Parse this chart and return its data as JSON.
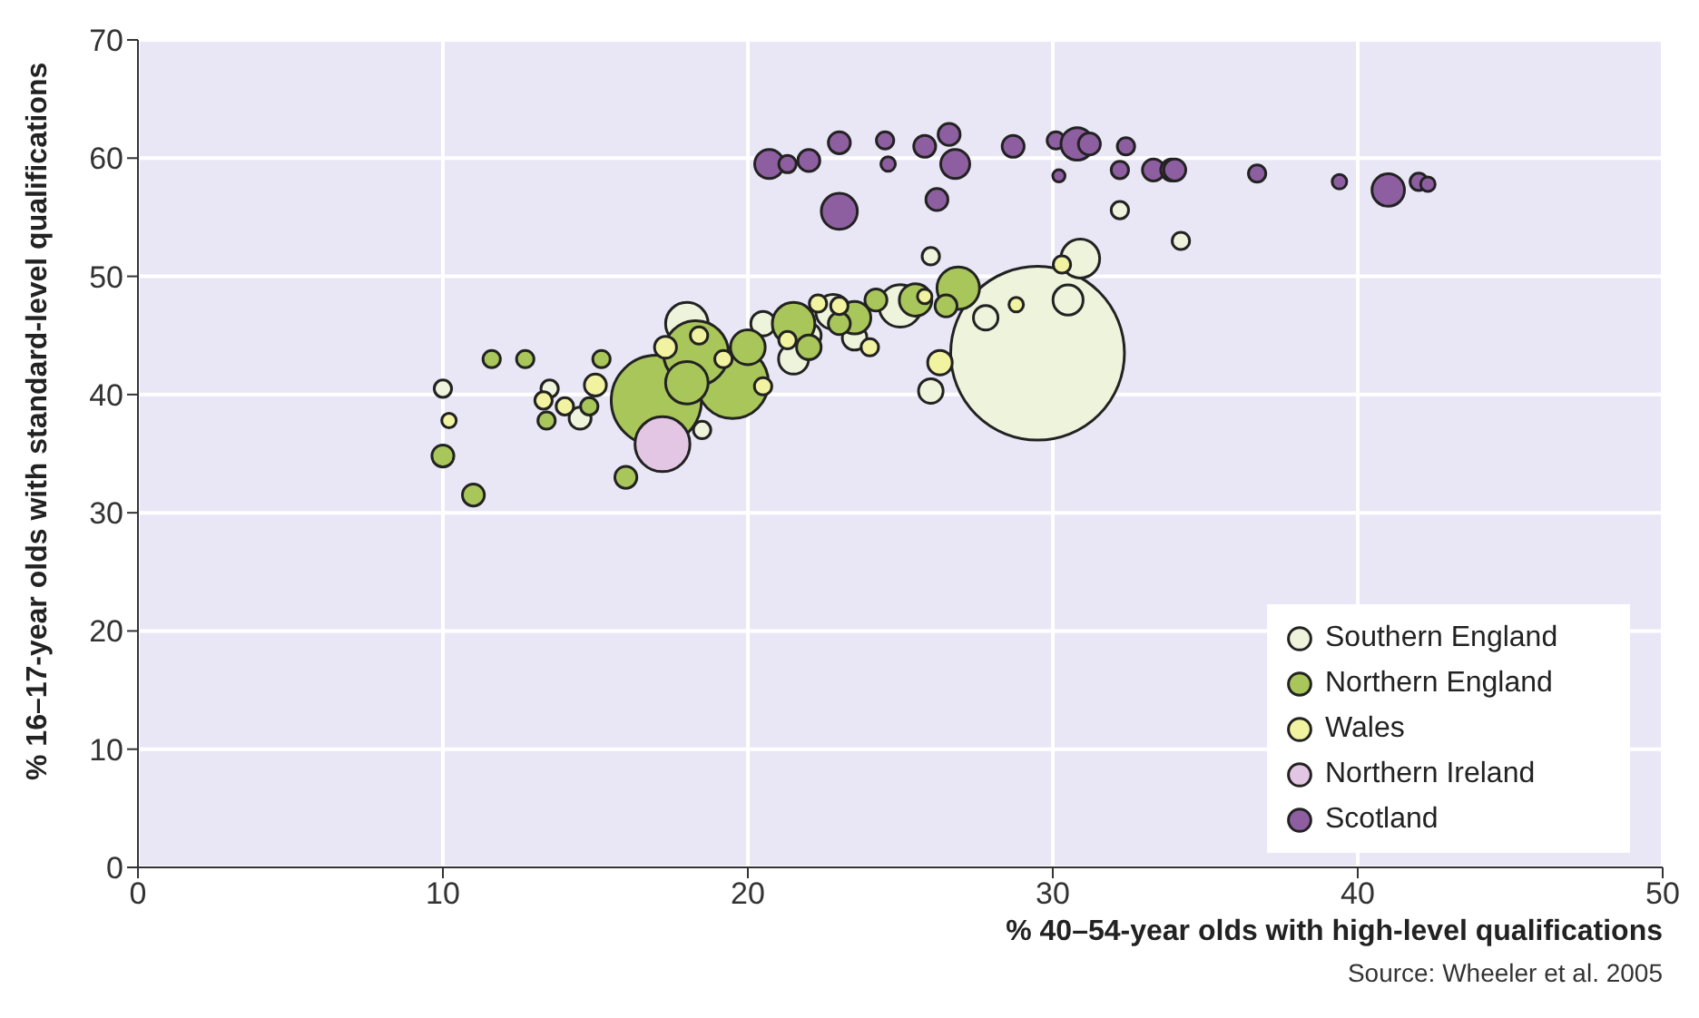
{
  "chart_data": {
    "type": "bubble",
    "xlabel": "% 40–54-year olds with high-level qualifications",
    "ylabel": "% 16–17-year olds with standard-level qualifications",
    "xlim": [
      0,
      50
    ],
    "ylim": [
      0,
      70
    ],
    "xticks": [
      0,
      10,
      20,
      30,
      40,
      50
    ],
    "yticks": [
      0,
      10,
      20,
      30,
      40,
      50,
      60,
      70
    ],
    "grid": true,
    "legend": "bottom right",
    "marker": "circle",
    "annotations": [
      "Source: Wheeler et al. 2005"
    ],
    "series": [
      {
        "name": "Southern England",
        "color": "#eef3dc",
        "x": [
          29.5,
          30.9,
          30.5,
          26,
          27.8,
          18,
          25,
          26,
          34.2,
          32.2,
          21.5,
          22.8,
          23.5,
          14.5,
          10,
          13.5,
          18.5,
          20.5,
          22
        ],
        "values": [
          43.5,
          51.5,
          48,
          40.3,
          46.5,
          46,
          47.5,
          51.7,
          53,
          55.6,
          43,
          47,
          44.8,
          38,
          40.5,
          40.5,
          37,
          46,
          45
        ],
        "sizes": [
          1,
          0.05,
          0.03,
          0.02,
          0.02,
          0.06,
          0.06,
          0.01,
          0.01,
          0.01,
          0.03,
          0.04,
          0.02,
          0.016,
          0.01,
          0.01,
          0.01,
          0.02,
          0.02
        ]
      },
      {
        "name": "Northern England",
        "color": "#a8c65a",
        "x": [
          17,
          19.5,
          18.3,
          18,
          20,
          21.5,
          23.5,
          25.5,
          26.9,
          16,
          11,
          10,
          11.6,
          12.7,
          13.4,
          14.8,
          15.2,
          22,
          23,
          24.2,
          26.5
        ],
        "values": [
          39.5,
          41,
          43.5,
          41,
          44,
          46,
          46.5,
          48,
          49,
          33,
          31.5,
          34.8,
          43,
          43,
          37.8,
          39,
          43,
          44,
          46,
          48,
          47.5
        ],
        "sizes": [
          0.27,
          0.17,
          0.14,
          0.06,
          0.04,
          0.06,
          0.035,
          0.035,
          0.06,
          0.016,
          0.016,
          0.016,
          0.01,
          0.01,
          0.01,
          0.01,
          0.01,
          0.02,
          0.016,
          0.016,
          0.016
        ]
      },
      {
        "name": "Wales",
        "color": "#f2f3a0",
        "x": [
          17.3,
          10.2,
          13.3,
          14,
          15,
          18.4,
          19.2,
          20.5,
          21.3,
          23,
          24,
          26.3,
          28.8,
          30.3,
          25.8,
          22.3
        ],
        "values": [
          44,
          37.8,
          39.5,
          39,
          40.8,
          45,
          43,
          40.7,
          44.6,
          47.5,
          44,
          42.7,
          47.6,
          51,
          48.3,
          47.7
        ],
        "sizes": [
          0.016,
          0.007,
          0.01,
          0.01,
          0.016,
          0.01,
          0.01,
          0.01,
          0.01,
          0.01,
          0.01,
          0.02,
          0.007,
          0.01,
          0.007,
          0.01
        ]
      },
      {
        "name": "Northern Ireland",
        "color": "#e3c6e3",
        "x": [
          17.2
        ],
        "values": [
          35.8
        ],
        "sizes": [
          0.1
        ]
      },
      {
        "name": "Scotland",
        "color": "#8e5fa0",
        "x": [
          20.7,
          21.3,
          22,
          23,
          24.5,
          24.6,
          25.8,
          26.2,
          26.6,
          26.8,
          23,
          28.7,
          30.1,
          30.2,
          30.8,
          31.2,
          32.4,
          32.2,
          33.3,
          33.9,
          34,
          36.7,
          39.4,
          41,
          42,
          42.3
        ],
        "values": [
          59.5,
          59.5,
          59.8,
          61.3,
          61.5,
          59.5,
          61,
          56.5,
          62,
          59.5,
          55.5,
          61,
          61.5,
          58.5,
          61.2,
          61.2,
          61,
          59,
          59,
          59,
          59,
          58.7,
          58,
          57.3,
          58,
          57.8
        ],
        "sizes": [
          0.028,
          0.01,
          0.016,
          0.016,
          0.01,
          0.007,
          0.016,
          0.016,
          0.016,
          0.028,
          0.043,
          0.016,
          0.01,
          0.005,
          0.035,
          0.016,
          0.01,
          0.01,
          0.016,
          0.016,
          0.016,
          0.01,
          0.007,
          0.035,
          0.01,
          0.007
        ]
      }
    ]
  }
}
